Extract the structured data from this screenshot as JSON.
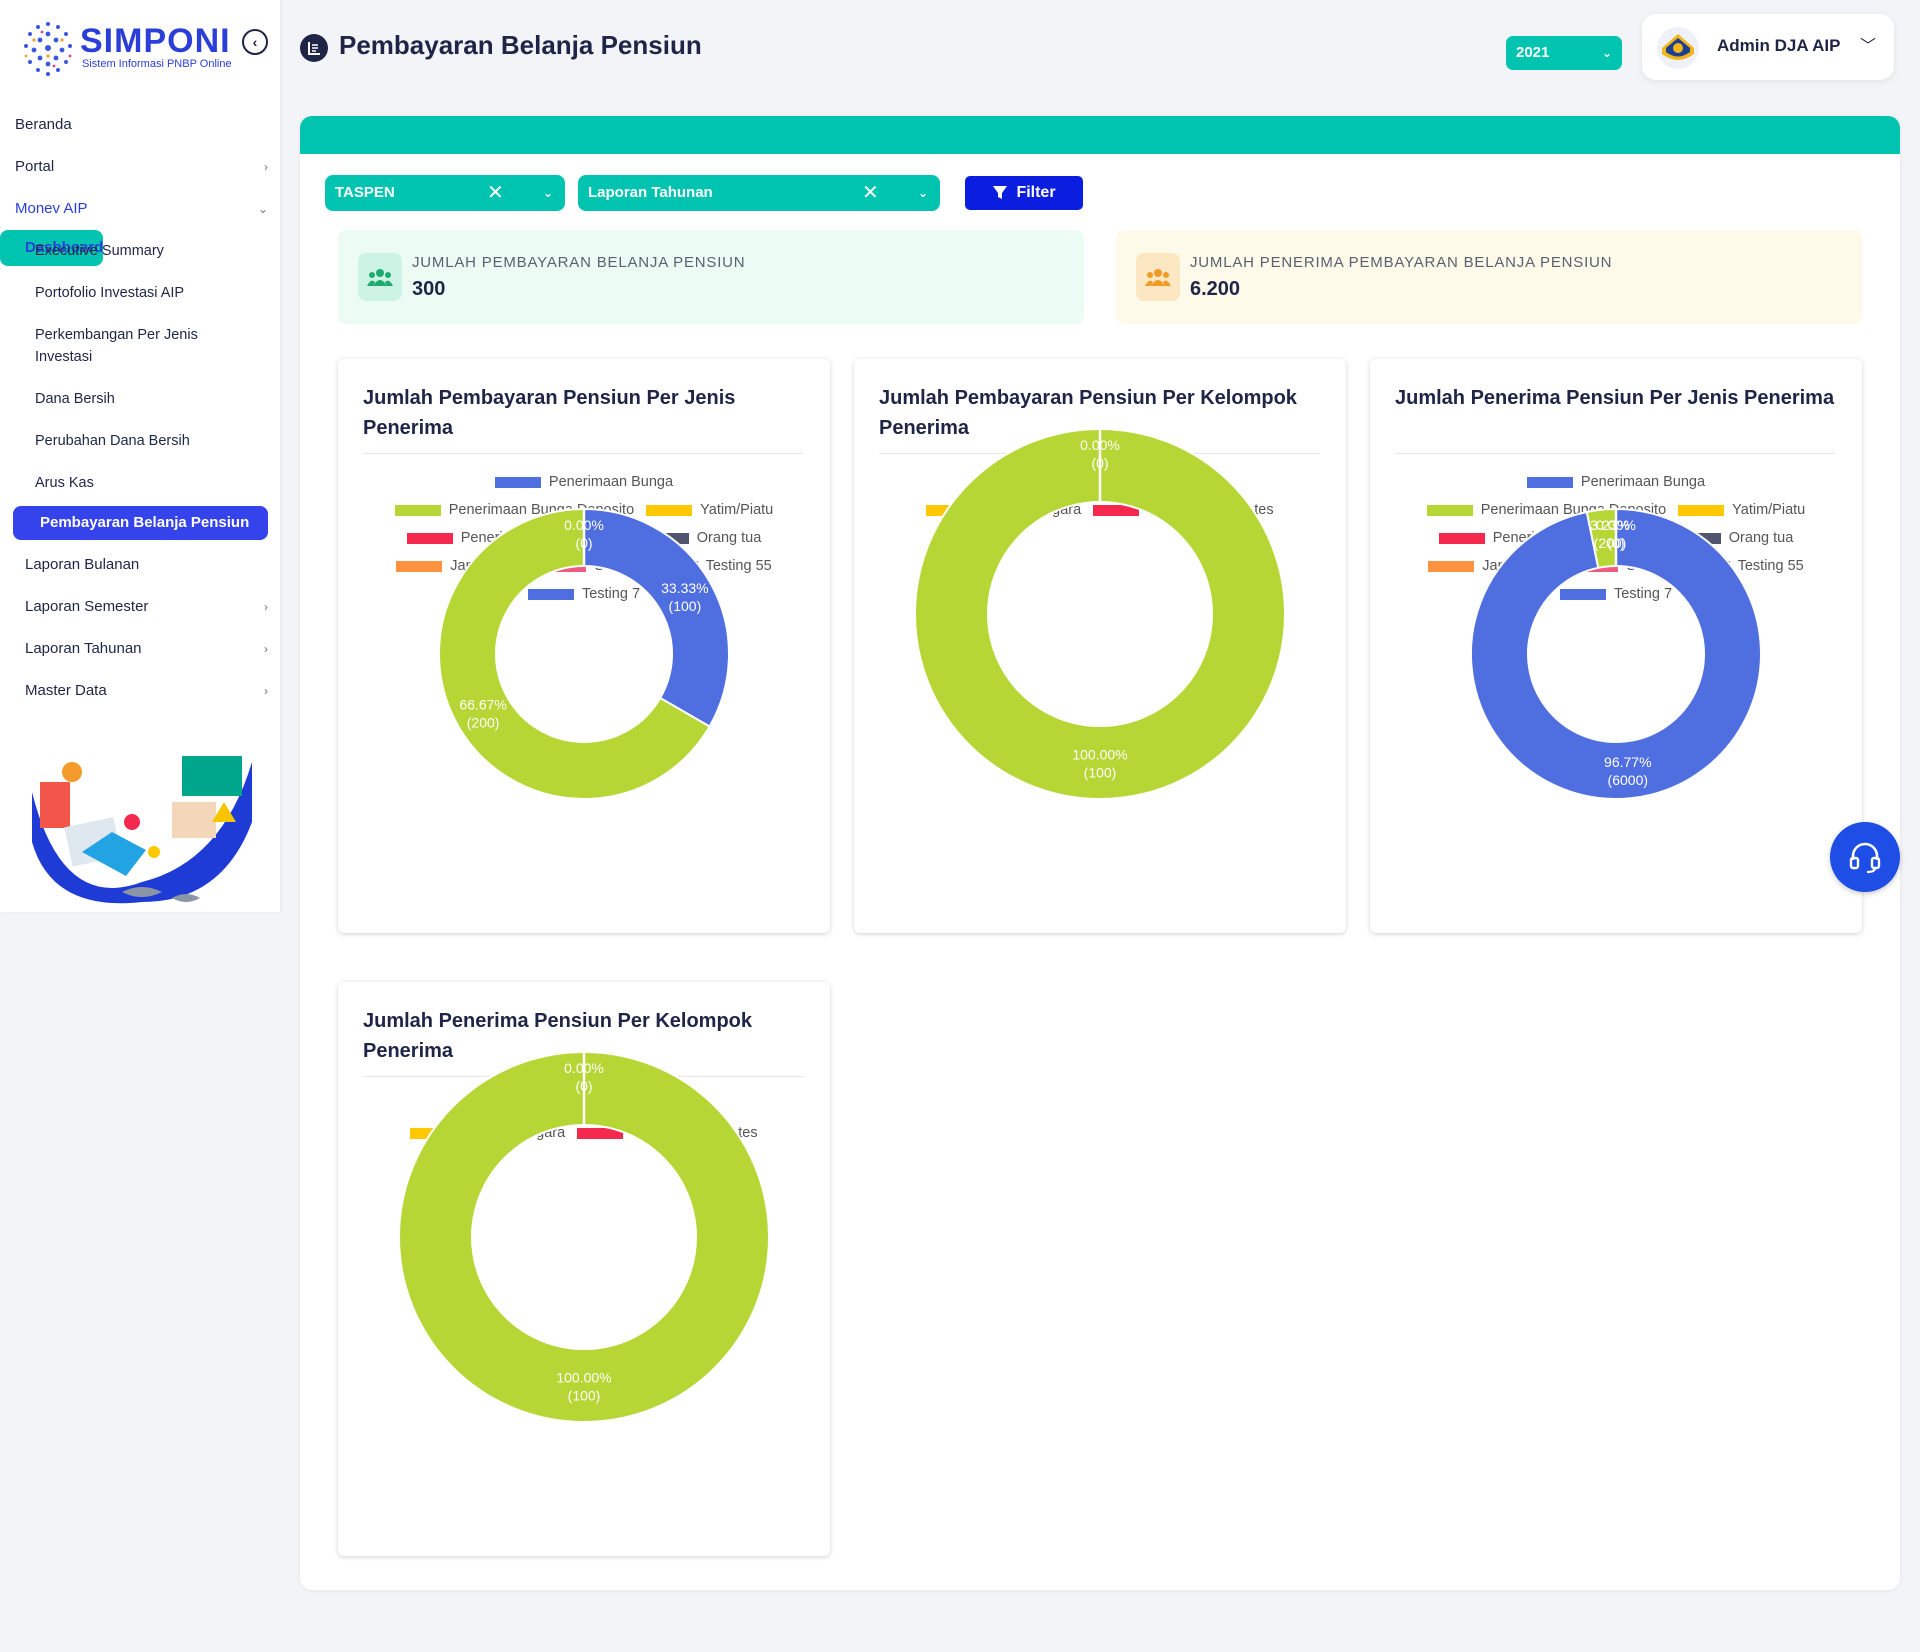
{
  "brand": {
    "title": "SIMPONI",
    "subtitle": "Sistem Informasi PNBP Online"
  },
  "sidebar": {
    "items": [
      {
        "label": "Beranda",
        "level": 0
      },
      {
        "label": "Portal",
        "level": 0,
        "chevron": "›"
      },
      {
        "label": "Monev AIP",
        "level": 0,
        "chevron": "⌄"
      },
      {
        "label": "Dashboard",
        "level": 1,
        "chevron": "⌄"
      },
      {
        "label": "Executive Summary",
        "level": 2
      },
      {
        "label": "Portofolio Investasi AIP",
        "level": 2
      },
      {
        "label": "Perkembangan Per Jenis Investasi",
        "level": 2
      },
      {
        "label": "Dana Bersih",
        "level": 2
      },
      {
        "label": "Perubahan Dana Bersih",
        "level": 2
      },
      {
        "label": "Arus Kas",
        "level": 2
      },
      {
        "label": "Pembayaran Belanja Pensiun",
        "level": 2,
        "active": true
      },
      {
        "label": "Laporan Bulanan",
        "level": 1
      },
      {
        "label": "Laporan Semester",
        "level": 1,
        "chevron": "›"
      },
      {
        "label": "Laporan Tahunan",
        "level": 1,
        "chevron": "›"
      },
      {
        "label": "Master Data",
        "level": 1,
        "chevron": "›"
      }
    ]
  },
  "header": {
    "title": "Pembayaran Belanja Pensiun",
    "year": "2021",
    "user": "Admin DJA AIP"
  },
  "filters": {
    "entity": "TASPEN",
    "report": "Laporan Tahunan",
    "button": "Filter"
  },
  "stats": [
    {
      "label": "JUMLAH PEMBAYARAN BELANJA PENSIUN",
      "value": "300"
    },
    {
      "label": "JUMLAH PENERIMA PEMBAYARAN BELANJA PENSIUN",
      "value": "6.200"
    }
  ],
  "colors": {
    "accent": "#00c4b0",
    "primary": "#3443ec",
    "filter": "#0b1ee0",
    "stat1_bg": "#edfbf5",
    "stat2_bg": "#fdfaea"
  },
  "chart_data": [
    {
      "type": "pie",
      "title": "Jumlah Pembayaran Pensiun Per Jenis Penerima",
      "legend_placement": "top",
      "categories": [
        "Penerimaan Bunga",
        "Penerimaan Bunga Deposito",
        "Yatim/Piatu",
        "Penerima Rekening Koran",
        "Orang tua",
        "Janda/Duda",
        "Sendiri",
        "Testing 55",
        "Testing 7"
      ],
      "colors": [
        "#4f6ee0",
        "#b5d634",
        "#ffc800",
        "#f5294d",
        "#50546e",
        "#ff9340",
        "#f05a7e",
        "#7b59b4",
        "#4f6ee0"
      ],
      "values": [
        100,
        200,
        0,
        0,
        0,
        0,
        0,
        0,
        0
      ],
      "labels": [
        {
          "index": 0,
          "pct": "33.33%",
          "count": "(100)"
        },
        {
          "index": 1,
          "pct": "66.67%",
          "count": "(200)"
        },
        {
          "index": 2,
          "pct": "0.00%",
          "count": "(0)"
        }
      ]
    },
    {
      "type": "pie",
      "title": "Jumlah Pembayaran Pensiun Per Kelompok Penerima",
      "legend_placement": "top",
      "categories": [
        "PNS DO",
        "PNS Pusat",
        "Pejabat Negara",
        "Hakim",
        "tes"
      ],
      "colors": [
        "#4f6ee0",
        "#b5d634",
        "#ffc800",
        "#f5294d",
        "#50546e"
      ],
      "values": [
        0,
        100,
        0,
        0,
        0
      ],
      "labels": [
        {
          "index": 1,
          "pct": "100.00%",
          "count": "(100)"
        },
        {
          "index": 0,
          "pct": "0.00%",
          "count": "(0)"
        }
      ]
    },
    {
      "type": "pie",
      "title": "Jumlah Penerima Pensiun Per Jenis Penerima",
      "legend_placement": "top",
      "categories": [
        "Penerimaan Bunga",
        "Penerimaan Bunga Deposito",
        "Yatim/Piatu",
        "Penerima Rekening Koran",
        "Orang tua",
        "Janda/Duda",
        "Sendiri",
        "Testing 55",
        "Testing 7"
      ],
      "colors": [
        "#4f6ee0",
        "#b5d634",
        "#ffc800",
        "#f5294d",
        "#50546e",
        "#ff9340",
        "#f05a7e",
        "#7b59b4",
        "#4f6ee0"
      ],
      "values": [
        6000,
        200,
        0,
        0,
        0,
        0,
        0,
        0,
        0
      ],
      "labels": [
        {
          "index": 0,
          "pct": "96.77%",
          "count": "(6000)"
        },
        {
          "index": 1,
          "pct": "3.23%",
          "count": "(200)"
        },
        {
          "index": 2,
          "pct": "0.00%",
          "count": "(0)"
        }
      ]
    },
    {
      "type": "pie",
      "title": "Jumlah Penerima Pensiun Per Kelompok Penerima",
      "legend_placement": "top",
      "categories": [
        "PNS DO",
        "PNS Pusat",
        "Pejabat Negara",
        "Hakim",
        "tes"
      ],
      "colors": [
        "#4f6ee0",
        "#b5d634",
        "#ffc800",
        "#f5294d",
        "#50546e"
      ],
      "values": [
        0,
        100,
        0,
        0,
        0
      ],
      "labels": [
        {
          "index": 1,
          "pct": "100.00%",
          "count": "(100)"
        },
        {
          "index": 0,
          "pct": "0.00%",
          "count": "(0)"
        }
      ]
    }
  ]
}
